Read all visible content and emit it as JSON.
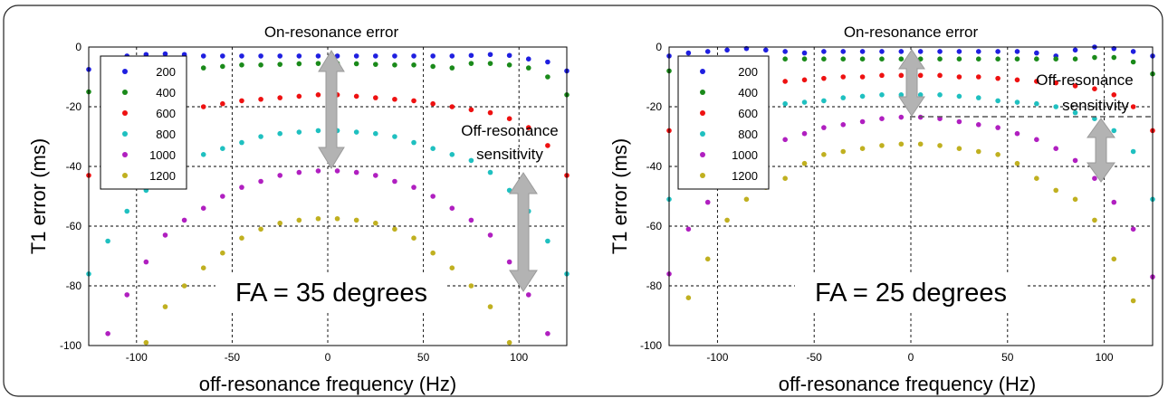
{
  "chart_data": [
    {
      "type": "scatter",
      "title": "On-resonance error",
      "xlabel": "off-resonance frequency (Hz)",
      "ylabel": "T1 error (ms)",
      "xlim": [
        -125,
        125
      ],
      "ylim": [
        -100,
        0
      ],
      "xticks": [
        -100,
        -50,
        0,
        50,
        100
      ],
      "yticks": [
        0,
        -20,
        -40,
        -60,
        -80,
        -100
      ],
      "grid": true,
      "legend_position": "top-left",
      "annotations": {
        "fa": "FA = 35 degrees",
        "off_resonance": [
          "Off-resonance",
          "sensitivity"
        ]
      },
      "series": [
        {
          "name": "200",
          "color": "#1f1fe0",
          "x": [
            -125,
            -115,
            -105,
            -95,
            -85,
            -75,
            -65,
            -55,
            -45,
            -35,
            -25,
            -15,
            -5,
            5,
            15,
            25,
            35,
            45,
            55,
            65,
            75,
            85,
            95,
            105,
            115,
            125
          ],
          "values": [
            -7.5,
            -4,
            -3,
            -2.5,
            -2.3,
            -2.5,
            -3,
            -3,
            -3,
            -3,
            -3,
            -3,
            -3,
            -3,
            -3,
            -3,
            -3,
            -3,
            -3,
            -3,
            -2.8,
            -2.5,
            -2.8,
            -4,
            -5,
            -8
          ]
        },
        {
          "name": "400",
          "color": "#1a8a1a",
          "x": [
            -125,
            -115,
            -105,
            -95,
            -85,
            -75,
            -65,
            -55,
            -45,
            -35,
            -25,
            -15,
            -5,
            5,
            15,
            25,
            35,
            45,
            55,
            65,
            75,
            85,
            95,
            105,
            115,
            125
          ],
          "values": [
            -15,
            -10,
            -7,
            -6,
            -5.5,
            -5.5,
            -7,
            -6.5,
            -6,
            -6,
            -5.8,
            -5.6,
            -5.5,
            -5.5,
            -5.6,
            -5.8,
            -6,
            -6,
            -6.5,
            -7,
            -5.5,
            -5.5,
            -6,
            -7,
            -10,
            -16
          ]
        },
        {
          "name": "600",
          "color": "#ee1111",
          "x": [
            -125,
            -115,
            -105,
            -95,
            -85,
            -75,
            -65,
            -55,
            -45,
            -35,
            -25,
            -15,
            -5,
            5,
            15,
            25,
            35,
            45,
            55,
            65,
            75,
            85,
            95,
            105,
            115,
            125
          ],
          "values": [
            -43,
            -33,
            -27,
            -24,
            -22,
            -21,
            -20,
            -19,
            -18,
            -17.5,
            -17,
            -16.5,
            -16,
            -16,
            -16.5,
            -17,
            -17.5,
            -18,
            -19,
            -20,
            -21,
            -22,
            -24,
            -27,
            -33,
            -43
          ]
        },
        {
          "name": "800",
          "color": "#1fc0c0",
          "x": [
            -125,
            -115,
            -105,
            -95,
            -85,
            -75,
            -65,
            -55,
            -45,
            -35,
            -25,
            -15,
            -5,
            5,
            15,
            25,
            35,
            45,
            55,
            65,
            75,
            85,
            95,
            105,
            115,
            125
          ],
          "values": [
            -76,
            -65,
            -55,
            -48,
            -42,
            -38,
            -36,
            -34,
            -32,
            -30,
            -29,
            -28.5,
            -28,
            -28,
            -28.5,
            -29,
            -30,
            -32,
            -34,
            -36,
            -38,
            -42,
            -48,
            -55,
            -65,
            -76
          ]
        },
        {
          "name": "1000",
          "color": "#b01fc0",
          "x": [
            -115,
            -105,
            -95,
            -85,
            -75,
            -65,
            -55,
            -45,
            -35,
            -25,
            -15,
            -5,
            5,
            15,
            25,
            35,
            45,
            55,
            65,
            75,
            85,
            95,
            105,
            115
          ],
          "values": [
            -96,
            -83,
            -72,
            -63,
            -58,
            -54,
            -50,
            -47,
            -45,
            -43,
            -42,
            -41.5,
            -41.5,
            -42,
            -43,
            -45,
            -47,
            -50,
            -54,
            -58,
            -63,
            -72,
            -83,
            -96
          ]
        },
        {
          "name": "1200",
          "color": "#c0b020",
          "x": [
            -95,
            -85,
            -75,
            -65,
            -55,
            -45,
            -35,
            -25,
            -15,
            -5,
            5,
            15,
            25,
            35,
            45,
            55,
            65,
            75,
            85,
            95
          ],
          "values": [
            -99,
            -87,
            -80,
            -74,
            -69,
            -64,
            -61,
            -59,
            -58,
            -57.5,
            -57.5,
            -58,
            -59,
            -61,
            -64,
            -69,
            -74,
            -80,
            -87,
            -99
          ]
        }
      ]
    },
    {
      "type": "scatter",
      "title": "On-resonance error",
      "xlabel": "off-resonance frequency (Hz)",
      "ylabel": "T1 error (ms)",
      "xlim": [
        -125,
        125
      ],
      "ylim": [
        -100,
        0
      ],
      "xticks": [
        -100,
        -50,
        0,
        50,
        100
      ],
      "yticks": [
        0,
        -20,
        -40,
        -60,
        -80,
        -100
      ],
      "grid": true,
      "legend_position": "top-left",
      "annotations": {
        "fa": "FA = 25 degrees",
        "off_resonance": [
          "Off-resonance",
          "sensitivity"
        ]
      },
      "series": [
        {
          "name": "200",
          "color": "#1f1fe0",
          "x": [
            -125,
            -115,
            -105,
            -95,
            -85,
            -75,
            -65,
            -55,
            -45,
            -35,
            -25,
            -15,
            -5,
            5,
            15,
            25,
            35,
            45,
            55,
            65,
            75,
            85,
            95,
            105,
            115,
            125
          ],
          "values": [
            -3,
            -2,
            -1.5,
            -1,
            -0.5,
            -1,
            -1.5,
            -2,
            -1.5,
            -1.5,
            -1.5,
            -1.5,
            -1.5,
            -1.5,
            -1.5,
            -1.5,
            -1.5,
            -1.5,
            -1.5,
            -2,
            -3,
            -1,
            0,
            -0.5,
            -1.5,
            -3
          ]
        },
        {
          "name": "400",
          "color": "#1a8a1a",
          "x": [
            -125,
            -115,
            -105,
            -95,
            -85,
            -75,
            -65,
            -55,
            -45,
            -35,
            -25,
            -15,
            -5,
            5,
            15,
            25,
            35,
            45,
            55,
            65,
            75,
            85,
            95,
            105,
            115,
            125
          ],
          "values": [
            -8,
            -6,
            -5,
            -4.5,
            -4.5,
            -4.5,
            -4,
            -4,
            -4,
            -4,
            -4,
            -4,
            -4,
            -4,
            -4,
            -4,
            -4,
            -4,
            -4,
            -4,
            -4,
            -4,
            -3.5,
            -3.5,
            -5,
            -9
          ]
        },
        {
          "name": "600",
          "color": "#ee1111",
          "x": [
            -125,
            -115,
            -105,
            -95,
            -85,
            -75,
            -65,
            -55,
            -45,
            -35,
            -25,
            -15,
            -5,
            5,
            15,
            25,
            35,
            45,
            55,
            65,
            75,
            85,
            95,
            105,
            115,
            125
          ],
          "values": [
            -28,
            -20,
            -16,
            -14,
            -13,
            -12,
            -11.5,
            -11,
            -10.5,
            -10,
            -10,
            -9.5,
            -9.5,
            -9.5,
            -9.5,
            -10,
            -10,
            -10.5,
            -11,
            -11.5,
            -12,
            -13,
            -14,
            -16,
            -20,
            -28
          ]
        },
        {
          "name": "800",
          "color": "#1fc0c0",
          "x": [
            -125,
            -115,
            -105,
            -95,
            -85,
            -75,
            -65,
            -55,
            -45,
            -35,
            -25,
            -15,
            -5,
            5,
            15,
            25,
            35,
            45,
            55,
            65,
            75,
            85,
            95,
            105,
            115,
            125
          ],
          "values": [
            -51,
            -35,
            -28,
            -24,
            -22,
            -20,
            -19,
            -18.5,
            -18,
            -17,
            -16.5,
            -16,
            -16,
            -16,
            -16,
            -16.5,
            -17,
            -18,
            -18.5,
            -19,
            -20,
            -22,
            -24,
            -28,
            -35,
            -51
          ]
        },
        {
          "name": "1000",
          "color": "#b01fc0",
          "x": [
            -125,
            -115,
            -105,
            -95,
            -85,
            -75,
            -65,
            -55,
            -45,
            -35,
            -25,
            -15,
            -5,
            5,
            15,
            25,
            35,
            45,
            55,
            65,
            75,
            85,
            95,
            105,
            115,
            125
          ],
          "values": [
            -76,
            -61,
            -52,
            -44,
            -38,
            -34,
            -31,
            -29,
            -27,
            -26,
            -25,
            -24,
            -23.5,
            -23.5,
            -24,
            -25,
            -26,
            -27,
            -29,
            -31,
            -34,
            -38,
            -44,
            -52,
            -61,
            -77
          ]
        },
        {
          "name": "1200",
          "color": "#c0b020",
          "x": [
            -115,
            -105,
            -95,
            -85,
            -75,
            -65,
            -55,
            -45,
            -35,
            -25,
            -15,
            -5,
            5,
            15,
            25,
            35,
            45,
            55,
            65,
            75,
            85,
            95,
            105,
            115
          ],
          "values": [
            -84,
            -71,
            -58,
            -51,
            -47,
            -44,
            -39,
            -36,
            -35,
            -34,
            -33,
            -32.5,
            -32.5,
            -33,
            -34,
            -35,
            -36,
            -39,
            -44,
            -48,
            -51,
            -58,
            -71,
            -85
          ]
        }
      ]
    }
  ]
}
